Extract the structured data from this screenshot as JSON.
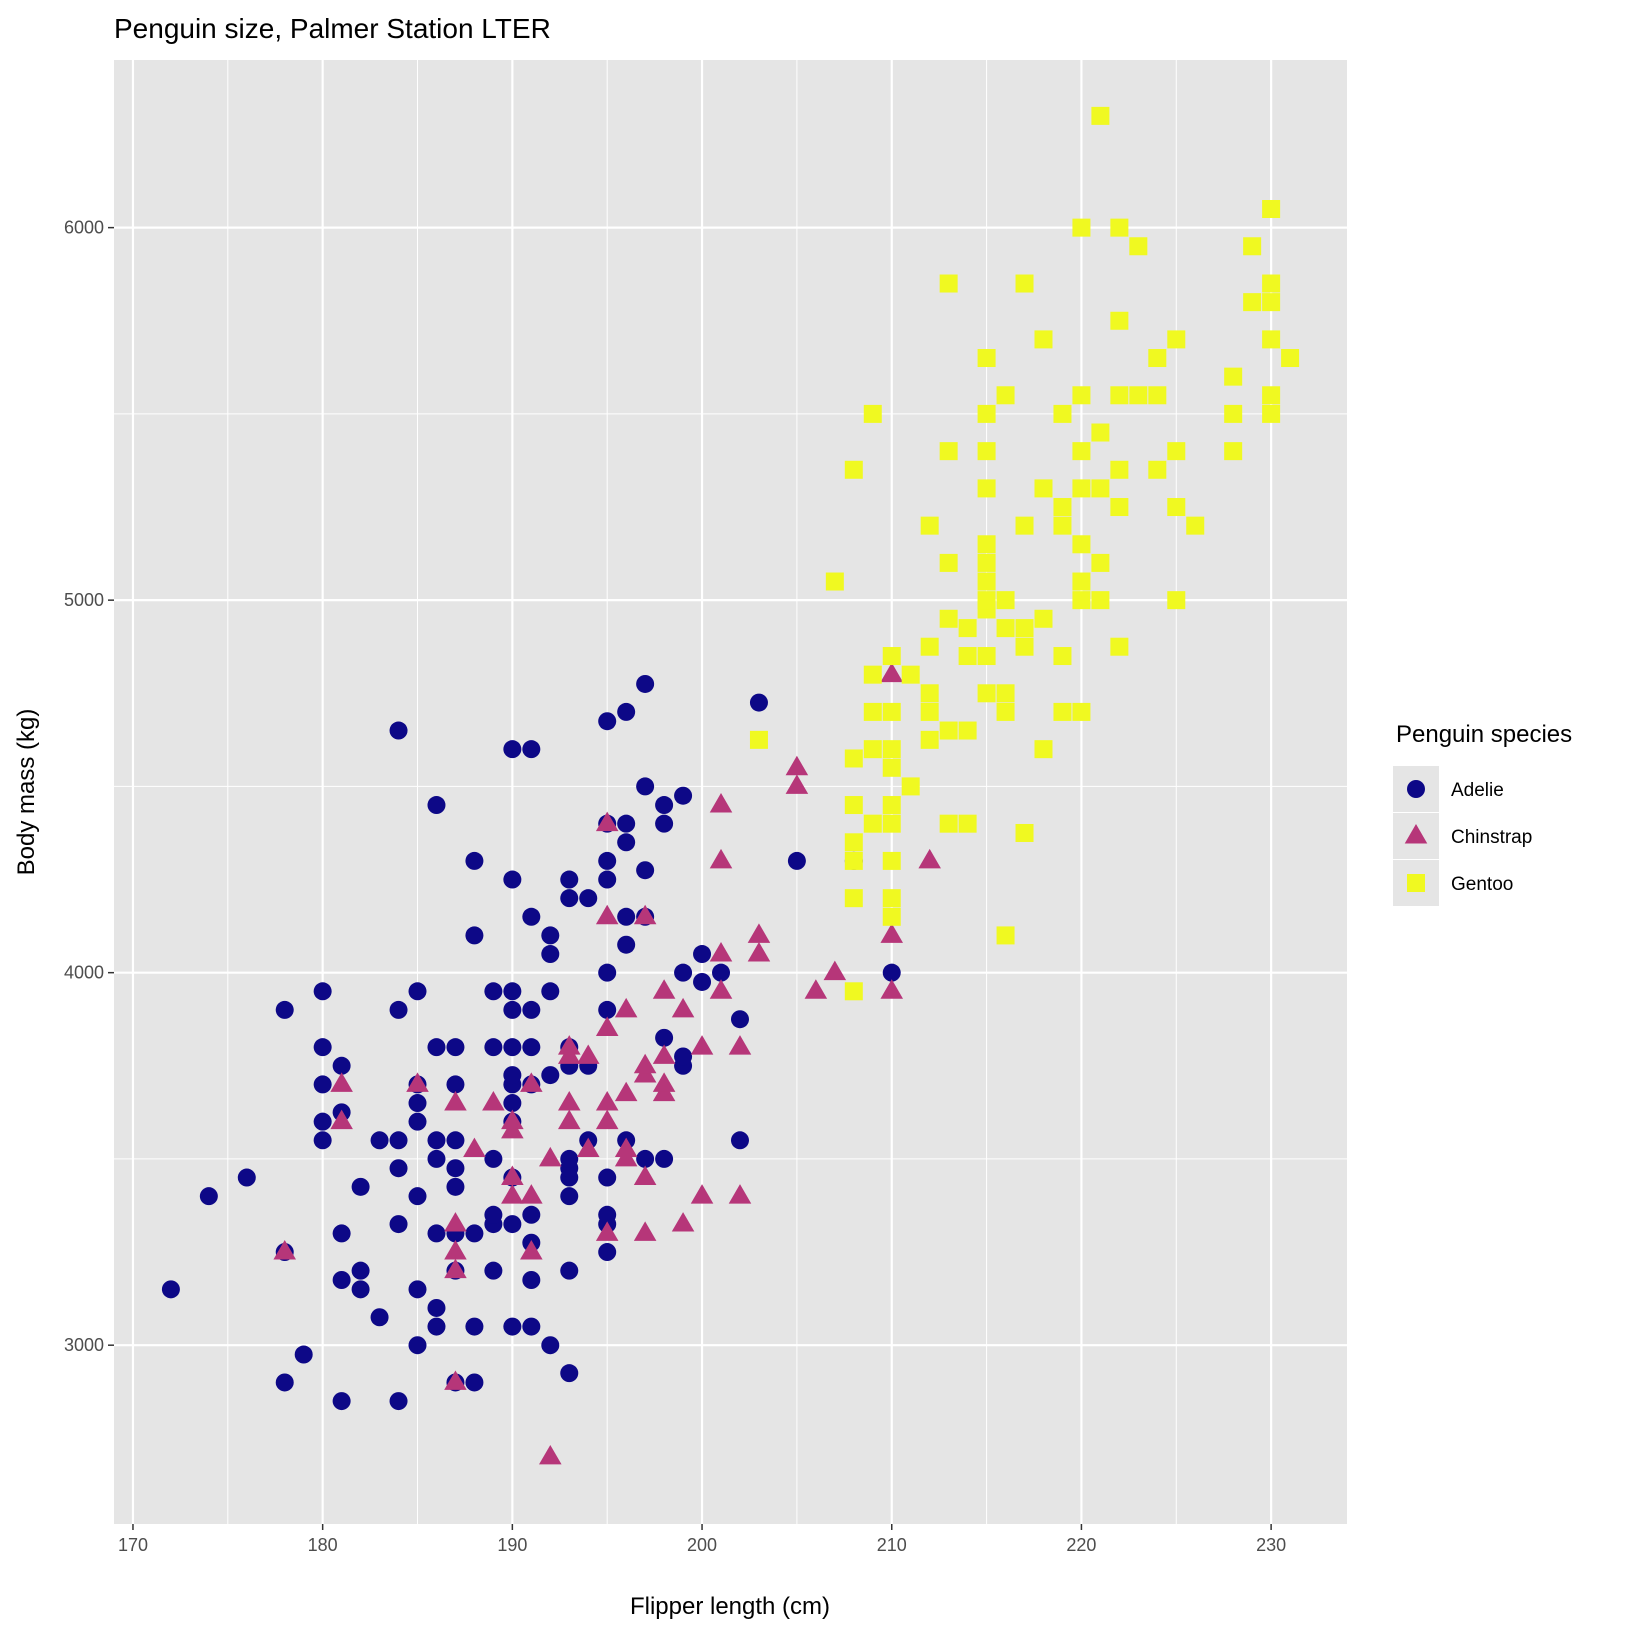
{
  "chart_data": {
    "type": "scatter",
    "title": "Penguin size, Palmer Station LTER",
    "xlabel": "Flipper length (cm)",
    "ylabel": "Body mass (kg)",
    "xlim": [
      169,
      234
    ],
    "ylim": [
      2520,
      6450
    ],
    "xticks": [
      170,
      180,
      190,
      200,
      210,
      220,
      230
    ],
    "yticks": [
      3000,
      4000,
      5000,
      6000
    ],
    "grid": true,
    "legend": {
      "title": "Penguin species",
      "placement": "right"
    },
    "colors": {
      "panel": "#e5e5e5",
      "grid": "#ffffff"
    },
    "series": [
      {
        "name": "Adelie",
        "shape": "circle",
        "color": "#0d0887",
        "points": [
          [
            172,
            3150
          ],
          [
            174,
            3400
          ],
          [
            176,
            3450
          ],
          [
            178,
            2900
          ],
          [
            178,
            3250
          ],
          [
            178,
            3900
          ],
          [
            179,
            2975
          ],
          [
            180,
            3550
          ],
          [
            180,
            3600
          ],
          [
            180,
            3700
          ],
          [
            180,
            3800
          ],
          [
            180,
            3950
          ],
          [
            181,
            2850
          ],
          [
            181,
            3175
          ],
          [
            181,
            3300
          ],
          [
            181,
            3625
          ],
          [
            181,
            3750
          ],
          [
            182,
            3150
          ],
          [
            182,
            3200
          ],
          [
            182,
            3425
          ],
          [
            183,
            3075
          ],
          [
            183,
            3550
          ],
          [
            184,
            2850
          ],
          [
            184,
            3325
          ],
          [
            184,
            3475
          ],
          [
            184,
            3550
          ],
          [
            184,
            3900
          ],
          [
            184,
            4650
          ],
          [
            185,
            3000
          ],
          [
            185,
            3150
          ],
          [
            185,
            3400
          ],
          [
            185,
            3600
          ],
          [
            185,
            3650
          ],
          [
            185,
            3700
          ],
          [
            185,
            3950
          ],
          [
            186,
            3050
          ],
          [
            186,
            3100
          ],
          [
            186,
            3300
          ],
          [
            186,
            3500
          ],
          [
            186,
            3550
          ],
          [
            186,
            3800
          ],
          [
            186,
            4450
          ],
          [
            187,
            2900
          ],
          [
            187,
            3200
          ],
          [
            187,
            3300
          ],
          [
            187,
            3425
          ],
          [
            187,
            3475
          ],
          [
            187,
            3550
          ],
          [
            187,
            3700
          ],
          [
            187,
            3800
          ],
          [
            188,
            2900
          ],
          [
            188,
            3050
          ],
          [
            188,
            3300
          ],
          [
            188,
            4100
          ],
          [
            188,
            4300
          ],
          [
            189,
            3200
          ],
          [
            189,
            3325
          ],
          [
            189,
            3350
          ],
          [
            189,
            3500
          ],
          [
            189,
            3800
          ],
          [
            189,
            3950
          ],
          [
            190,
            3050
          ],
          [
            190,
            3325
          ],
          [
            190,
            3450
          ],
          [
            190,
            3600
          ],
          [
            190,
            3650
          ],
          [
            190,
            3700
          ],
          [
            190,
            3725
          ],
          [
            190,
            3800
          ],
          [
            190,
            3900
          ],
          [
            190,
            3950
          ],
          [
            190,
            4250
          ],
          [
            190,
            4600
          ],
          [
            191,
            3050
          ],
          [
            191,
            3175
          ],
          [
            191,
            3275
          ],
          [
            191,
            3350
          ],
          [
            191,
            3700
          ],
          [
            191,
            3800
          ],
          [
            191,
            3900
          ],
          [
            191,
            4150
          ],
          [
            191,
            4600
          ],
          [
            192,
            3000
          ],
          [
            192,
            3725
          ],
          [
            192,
            3950
          ],
          [
            192,
            4050
          ],
          [
            192,
            4100
          ],
          [
            193,
            2925
          ],
          [
            193,
            3200
          ],
          [
            193,
            3400
          ],
          [
            193,
            3450
          ],
          [
            193,
            3475
          ],
          [
            193,
            3500
          ],
          [
            193,
            3750
          ],
          [
            193,
            3800
          ],
          [
            193,
            4200
          ],
          [
            193,
            4250
          ],
          [
            194,
            3550
          ],
          [
            194,
            3750
          ],
          [
            194,
            4200
          ],
          [
            195,
            3250
          ],
          [
            195,
            3325
          ],
          [
            195,
            3350
          ],
          [
            195,
            3450
          ],
          [
            195,
            3900
          ],
          [
            195,
            4000
          ],
          [
            195,
            4250
          ],
          [
            195,
            4300
          ],
          [
            195,
            4400
          ],
          [
            195,
            4675
          ],
          [
            196,
            3550
          ],
          [
            196,
            4075
          ],
          [
            196,
            4150
          ],
          [
            196,
            4350
          ],
          [
            196,
            4400
          ],
          [
            196,
            4700
          ],
          [
            197,
            3500
          ],
          [
            197,
            4150
          ],
          [
            197,
            4275
          ],
          [
            197,
            4500
          ],
          [
            197,
            4775
          ],
          [
            198,
            3500
          ],
          [
            198,
            3825
          ],
          [
            198,
            4400
          ],
          [
            198,
            4450
          ],
          [
            199,
            3750
          ],
          [
            199,
            3775
          ],
          [
            199,
            4000
          ],
          [
            199,
            4475
          ],
          [
            200,
            3975
          ],
          [
            200,
            4050
          ],
          [
            201,
            4000
          ],
          [
            202,
            3550
          ],
          [
            202,
            3875
          ],
          [
            203,
            4725
          ],
          [
            205,
            4300
          ],
          [
            208,
            4300
          ],
          [
            210,
            4000
          ]
        ]
      },
      {
        "name": "Chinstrap",
        "shape": "triangle",
        "color": "#b63679",
        "points": [
          [
            178,
            3250
          ],
          [
            181,
            3600
          ],
          [
            181,
            3700
          ],
          [
            185,
            3700
          ],
          [
            187,
            2900
          ],
          [
            187,
            3200
          ],
          [
            187,
            3250
          ],
          [
            187,
            3325
          ],
          [
            187,
            3650
          ],
          [
            188,
            3525
          ],
          [
            189,
            3650
          ],
          [
            190,
            3400
          ],
          [
            190,
            3450
          ],
          [
            190,
            3575
          ],
          [
            190,
            3600
          ],
          [
            191,
            3250
          ],
          [
            191,
            3400
          ],
          [
            191,
            3700
          ],
          [
            192,
            2700
          ],
          [
            192,
            3500
          ],
          [
            193,
            3600
          ],
          [
            193,
            3650
          ],
          [
            193,
            3775
          ],
          [
            193,
            3800
          ],
          [
            194,
            3525
          ],
          [
            194,
            3775
          ],
          [
            195,
            3300
          ],
          [
            195,
            3600
          ],
          [
            195,
            3650
          ],
          [
            195,
            3850
          ],
          [
            195,
            4150
          ],
          [
            195,
            4400
          ],
          [
            196,
            3500
          ],
          [
            196,
            3525
          ],
          [
            196,
            3675
          ],
          [
            196,
            3900
          ],
          [
            197,
            3300
          ],
          [
            197,
            3450
          ],
          [
            197,
            3725
          ],
          [
            197,
            3750
          ],
          [
            197,
            4150
          ],
          [
            198,
            3675
          ],
          [
            198,
            3700
          ],
          [
            198,
            3775
          ],
          [
            198,
            3950
          ],
          [
            199,
            3325
          ],
          [
            199,
            3900
          ],
          [
            200,
            3400
          ],
          [
            200,
            3800
          ],
          [
            201,
            3950
          ],
          [
            201,
            4050
          ],
          [
            201,
            4300
          ],
          [
            201,
            4450
          ],
          [
            202,
            3400
          ],
          [
            202,
            3800
          ],
          [
            203,
            4050
          ],
          [
            203,
            4100
          ],
          [
            205,
            4500
          ],
          [
            205,
            4550
          ],
          [
            206,
            3950
          ],
          [
            207,
            4000
          ],
          [
            210,
            3950
          ],
          [
            210,
            4100
          ],
          [
            210,
            4800
          ],
          [
            212,
            4300
          ]
        ]
      },
      {
        "name": "Gentoo",
        "shape": "square",
        "color": "#f0f921",
        "points": [
          [
            203,
            4625
          ],
          [
            207,
            5050
          ],
          [
            208,
            3950
          ],
          [
            208,
            4200
          ],
          [
            208,
            4300
          ],
          [
            208,
            4350
          ],
          [
            208,
            4450
          ],
          [
            208,
            4575
          ],
          [
            208,
            5350
          ],
          [
            209,
            4400
          ],
          [
            209,
            4600
          ],
          [
            209,
            4700
          ],
          [
            209,
            4800
          ],
          [
            209,
            5500
          ],
          [
            210,
            4150
          ],
          [
            210,
            4200
          ],
          [
            210,
            4300
          ],
          [
            210,
            4400
          ],
          [
            210,
            4450
          ],
          [
            210,
            4550
          ],
          [
            210,
            4600
          ],
          [
            210,
            4700
          ],
          [
            210,
            4850
          ],
          [
            211,
            4500
          ],
          [
            211,
            4800
          ],
          [
            212,
            4625
          ],
          [
            212,
            4700
          ],
          [
            212,
            4750
          ],
          [
            212,
            4875
          ],
          [
            212,
            5200
          ],
          [
            213,
            4400
          ],
          [
            213,
            4650
          ],
          [
            213,
            4950
          ],
          [
            213,
            5100
          ],
          [
            213,
            5400
          ],
          [
            213,
            5850
          ],
          [
            214,
            4400
          ],
          [
            214,
            4650
          ],
          [
            214,
            4850
          ],
          [
            214,
            4925
          ],
          [
            215,
            4750
          ],
          [
            215,
            4850
          ],
          [
            215,
            4975
          ],
          [
            215,
            5000
          ],
          [
            215,
            5050
          ],
          [
            215,
            5100
          ],
          [
            215,
            5150
          ],
          [
            215,
            5300
          ],
          [
            215,
            5400
          ],
          [
            215,
            5500
          ],
          [
            215,
            5650
          ],
          [
            216,
            4100
          ],
          [
            216,
            4700
          ],
          [
            216,
            4750
          ],
          [
            216,
            4925
          ],
          [
            216,
            5000
          ],
          [
            216,
            5550
          ],
          [
            217,
            4375
          ],
          [
            217,
            4875
          ],
          [
            217,
            4925
          ],
          [
            217,
            5200
          ],
          [
            217,
            5850
          ],
          [
            218,
            4600
          ],
          [
            218,
            4950
          ],
          [
            218,
            5300
          ],
          [
            218,
            5700
          ],
          [
            219,
            4700
          ],
          [
            219,
            4850
          ],
          [
            219,
            5200
          ],
          [
            219,
            5250
          ],
          [
            219,
            5500
          ],
          [
            220,
            4700
          ],
          [
            220,
            5000
          ],
          [
            220,
            5050
          ],
          [
            220,
            5150
          ],
          [
            220,
            5300
          ],
          [
            220,
            5400
          ],
          [
            220,
            5550
          ],
          [
            220,
            6000
          ],
          [
            221,
            5000
          ],
          [
            221,
            5100
          ],
          [
            221,
            5300
          ],
          [
            221,
            5450
          ],
          [
            221,
            6300
          ],
          [
            222,
            4875
          ],
          [
            222,
            5250
          ],
          [
            222,
            5350
          ],
          [
            222,
            5550
          ],
          [
            222,
            5750
          ],
          [
            222,
            6000
          ],
          [
            223,
            5550
          ],
          [
            223,
            5950
          ],
          [
            224,
            5350
          ],
          [
            224,
            5550
          ],
          [
            224,
            5650
          ],
          [
            225,
            5000
          ],
          [
            225,
            5250
          ],
          [
            225,
            5400
          ],
          [
            225,
            5700
          ],
          [
            226,
            5200
          ],
          [
            228,
            5400
          ],
          [
            228,
            5500
          ],
          [
            228,
            5600
          ],
          [
            229,
            5800
          ],
          [
            229,
            5950
          ],
          [
            230,
            5500
          ],
          [
            230,
            5550
          ],
          [
            230,
            5700
          ],
          [
            230,
            5800
          ],
          [
            230,
            5850
          ],
          [
            230,
            6050
          ],
          [
            231,
            5650
          ]
        ]
      }
    ]
  }
}
